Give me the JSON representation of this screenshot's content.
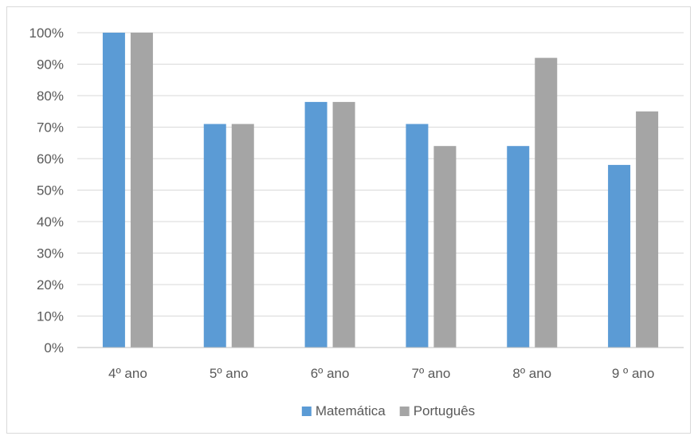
{
  "chart_data": {
    "type": "bar",
    "title": "",
    "xlabel": "",
    "ylabel": "",
    "categories": [
      "4º ano",
      "5º ano",
      "6º ano",
      "7º ano",
      "8º ano",
      "9 º ano"
    ],
    "series": [
      {
        "name": "Matemática",
        "values": [
          100,
          71,
          78,
          71,
          64,
          58
        ],
        "color": "#5b9bd5"
      },
      {
        "name": "Português",
        "values": [
          100,
          71,
          78,
          64,
          92,
          75
        ],
        "color": "#a5a5a5"
      }
    ],
    "ylim": [
      0,
      100
    ],
    "yticks": [
      "0%",
      "10%",
      "20%",
      "30%",
      "40%",
      "50%",
      "60%",
      "70%",
      "80%",
      "90%",
      "100%"
    ],
    "grid": true,
    "legend_position": "bottom",
    "gridline_color": "#d9d9d9",
    "axis_color": "#bfbfbf"
  }
}
